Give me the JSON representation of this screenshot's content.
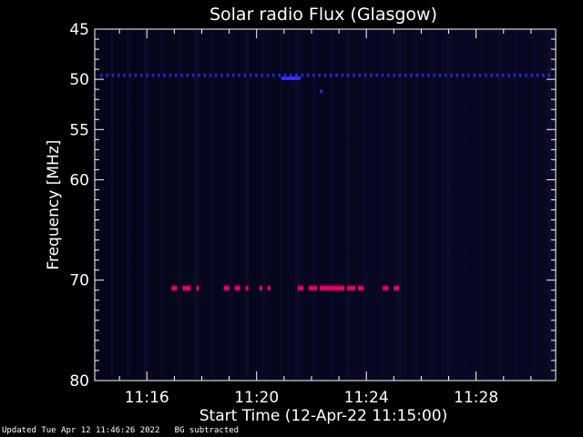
{
  "chart_data": {
    "type": "heatmap",
    "title": "Solar radio Flux (Glasgow)",
    "xlabel": "Start Time (12-Apr-22 11:15:00)",
    "ylabel": "Frequency [MHz]",
    "x_range_minutes_after_start": [
      -0.9,
      15.9
    ],
    "y_range_mhz": [
      45,
      80
    ],
    "y_axis_inverted": true,
    "x_ticks": [
      {
        "label": "11:16",
        "minute": 1
      },
      {
        "label": "11:20",
        "minute": 5
      },
      {
        "label": "11:24",
        "minute": 9
      },
      {
        "label": "11:28",
        "minute": 13
      }
    ],
    "y_ticks": [
      {
        "label": "45",
        "mhz": 45
      },
      {
        "label": "50",
        "mhz": 50
      },
      {
        "label": "55",
        "mhz": 55
      },
      {
        "label": "60",
        "mhz": 60
      },
      {
        "label": "70",
        "mhz": 70
      },
      {
        "label": "80",
        "mhz": 80
      }
    ],
    "colors": {
      "background": "#05051a",
      "interference_band": "#3030ff",
      "burst_edge": "#c0004a",
      "burst_core": "#ff0070",
      "burst_highlight": "#a040ff"
    },
    "features": [
      {
        "name": "persistent band",
        "frequency_mhz": 49.6,
        "start_minute": -0.7,
        "end_minute": 15.8,
        "intensity": 0.45
      },
      {
        "name": "short signal",
        "frequency_mhz": 49.9,
        "start_minute": 5.9,
        "end_minute": 6.6,
        "intensity": 0.7
      },
      {
        "name": "point",
        "frequency_mhz": 51.2,
        "start_minute": 7.3,
        "end_minute": 7.4,
        "intensity": 0.5
      }
    ],
    "bursts": [
      {
        "frequency_mhz": 70.8,
        "start_minute": 1.9,
        "end_minute": 2.1
      },
      {
        "frequency_mhz": 70.8,
        "start_minute": 2.3,
        "end_minute": 2.6
      },
      {
        "frequency_mhz": 70.8,
        "start_minute": 2.8,
        "end_minute": 2.9
      },
      {
        "frequency_mhz": 70.8,
        "start_minute": 3.8,
        "end_minute": 4.0
      },
      {
        "frequency_mhz": 70.8,
        "start_minute": 4.2,
        "end_minute": 4.4
      },
      {
        "frequency_mhz": 70.8,
        "start_minute": 4.6,
        "end_minute": 4.7
      },
      {
        "frequency_mhz": 70.8,
        "start_minute": 5.1,
        "end_minute": 5.2
      },
      {
        "frequency_mhz": 70.8,
        "start_minute": 5.4,
        "end_minute": 5.5
      },
      {
        "frequency_mhz": 70.8,
        "start_minute": 6.5,
        "end_minute": 6.7
      },
      {
        "frequency_mhz": 70.8,
        "start_minute": 6.9,
        "end_minute": 7.2
      },
      {
        "frequency_mhz": 70.8,
        "start_minute": 7.3,
        "end_minute": 8.2
      },
      {
        "frequency_mhz": 70.8,
        "start_minute": 8.3,
        "end_minute": 8.6
      },
      {
        "frequency_mhz": 70.8,
        "start_minute": 8.7,
        "end_minute": 8.9
      },
      {
        "frequency_mhz": 70.8,
        "start_minute": 9.6,
        "end_minute": 9.8
      },
      {
        "frequency_mhz": 70.8,
        "start_minute": 10.0,
        "end_minute": 10.2
      }
    ]
  },
  "footer": {
    "text": "Updated Tue Apr 12 11:46:26 2022   BG subtracted"
  }
}
